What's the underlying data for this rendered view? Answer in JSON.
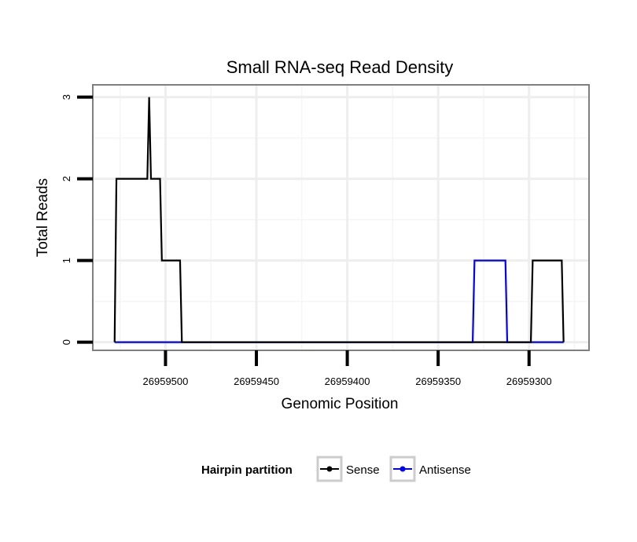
{
  "chart_data": {
    "type": "line",
    "title": "Small RNA-seq Read Density",
    "xlabel": "Genomic Position",
    "ylabel": "Total Reads",
    "xlim": [
      26959540,
      26959267
    ],
    "x_reversed": true,
    "ylim": [
      -0.1,
      3.15
    ],
    "x_ticks": [
      26959500,
      26959450,
      26959400,
      26959350,
      26959300
    ],
    "x_tick_labels": [
      "26959500",
      "26959450",
      "26959400",
      "26959350",
      "26959300"
    ],
    "y_ticks": [
      0,
      1,
      2,
      3
    ],
    "y_tick_labels": [
      "0",
      "1",
      "2",
      "3"
    ],
    "grid": true,
    "legend": {
      "title": "Hairpin partition",
      "position": "bottom"
    },
    "series": [
      {
        "name": "Sense",
        "color": "#000000",
        "points": [
          [
            26959528,
            0
          ],
          [
            26959527,
            2
          ],
          [
            26959510,
            2
          ],
          [
            26959509,
            3
          ],
          [
            26959508,
            2
          ],
          [
            26959503,
            2
          ],
          [
            26959502,
            1
          ],
          [
            26959492,
            1
          ],
          [
            26959491,
            0
          ],
          [
            26959299,
            0
          ],
          [
            26959298,
            1
          ],
          [
            26959282,
            1
          ],
          [
            26959281,
            0
          ]
        ]
      },
      {
        "name": "Antisense",
        "color": "#0000ff",
        "points": [
          [
            26959528,
            0
          ],
          [
            26959331,
            0
          ],
          [
            26959330,
            1
          ],
          [
            26959313,
            1
          ],
          [
            26959312,
            0
          ],
          [
            26959281,
            0
          ]
        ]
      }
    ]
  }
}
